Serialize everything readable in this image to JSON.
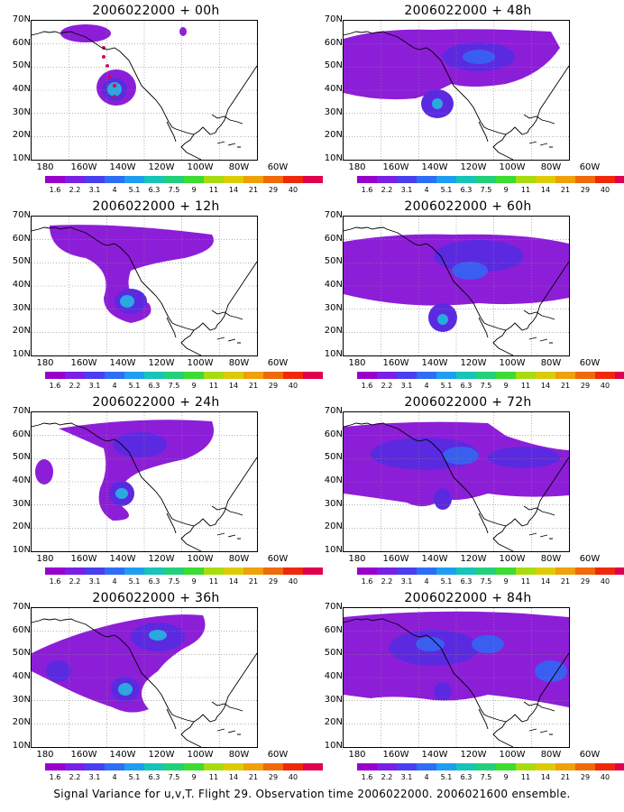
{
  "panels": [
    {
      "title": "2006022000 + 00h"
    },
    {
      "title": "2006022000 + 48h"
    },
    {
      "title": "2006022000 + 12h"
    },
    {
      "title": "2006022000 + 60h"
    },
    {
      "title": "2006022000 + 24h"
    },
    {
      "title": "2006022000 + 72h"
    },
    {
      "title": "2006022000 + 36h"
    },
    {
      "title": "2006022000 + 84h"
    }
  ],
  "lat_labels": [
    "70N",
    "60N",
    "50N",
    "40N",
    "30N",
    "20N",
    "10N"
  ],
  "lon_labels": [
    "180",
    "160W",
    "140W",
    "120W",
    "100W",
    "80W",
    "60W"
  ],
  "colorbar": {
    "labels": [
      "1.6",
      "2.2",
      "3.1",
      "4",
      "5.1",
      "6.3",
      "7.5",
      "9",
      "11",
      "14",
      "21",
      "29",
      "40"
    ],
    "colors": [
      "#9900cc",
      "#7a1fe6",
      "#4a3ff0",
      "#2e6ef5",
      "#1e9ef0",
      "#17c4b8",
      "#22d07a",
      "#3cdc32",
      "#a8dc10",
      "#dccc08",
      "#f0a00a",
      "#f06a0a",
      "#f0280a",
      "#e0004f"
    ]
  },
  "footer": "Signal Variance for u,v,T. Flight 29. Observation time 2006022000. 2006021600 ensemble."
}
